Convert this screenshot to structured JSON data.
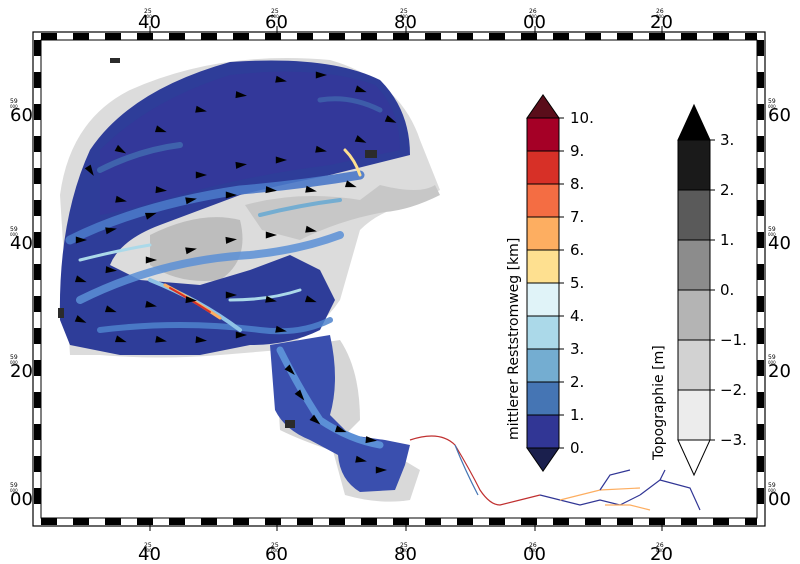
{
  "frame": {
    "top_ticks": [
      {
        "small": "25",
        "small2": "000",
        "big": "40"
      },
      {
        "small": "25",
        "small2": "000",
        "big": "60"
      },
      {
        "small": "25",
        "small2": "000",
        "big": "80"
      },
      {
        "small": "26",
        "small2": "000",
        "big": "00"
      },
      {
        "small": "26",
        "small2": "000",
        "big": "20"
      }
    ],
    "side_ticks": [
      {
        "small": "59",
        "small2": "000",
        "big": "60"
      },
      {
        "small": "59",
        "small2": "000",
        "big": "40"
      },
      {
        "small": "59",
        "small2": "000",
        "big": "20"
      },
      {
        "small": "59",
        "small2": "000",
        "big": "00"
      }
    ]
  },
  "colorbars": {
    "current": {
      "title": "mittlerer Reststromweg [km]",
      "labels": [
        "10.",
        "9.",
        "8.",
        "7.",
        "6.",
        "5.",
        "4.",
        "3.",
        "2.",
        "1.",
        "0."
      ],
      "colors": [
        "#a50026",
        "#d73027",
        "#f46d43",
        "#fdae61",
        "#fee090",
        "#e0f3f8",
        "#abd9e9",
        "#74add1",
        "#4575b4",
        "#313695"
      ],
      "over_color": "#5a0d1a",
      "under_color": "#1a1f4d"
    },
    "topo": {
      "title": "Topographie [m]",
      "labels": [
        "3.",
        "2.",
        "1.",
        "0.",
        "−1.",
        "−2.",
        "−3."
      ],
      "colors": [
        "#1a1a1a",
        "#5a5a5a",
        "#8c8c8c",
        "#b4b4b4",
        "#d2d2d2",
        "#ececec"
      ],
      "over_color": "#000000",
      "under_color": "#ffffff"
    }
  }
}
